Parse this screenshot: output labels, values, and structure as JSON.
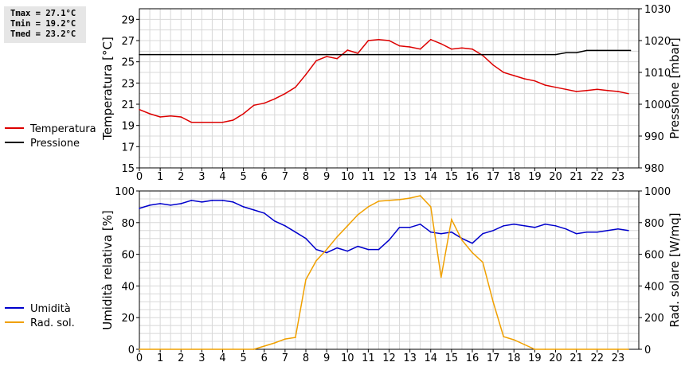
{
  "stats": {
    "tmax": "Tmax = 27.1°C",
    "tmin": "Tmin = 19.2°C",
    "tmed": "Tmed = 23.2°C"
  },
  "chart_data": [
    {
      "type": "line",
      "xlim": [
        0,
        24
      ],
      "x_ticks": [
        "0",
        "1",
        "2",
        "3",
        "4",
        "5",
        "6",
        "7",
        "8",
        "9",
        "10",
        "11",
        "12",
        "13",
        "14",
        "15",
        "16",
        "17",
        "18",
        "19",
        "20",
        "21",
        "22",
        "23"
      ],
      "ylabel": "Temperatura [°C]",
      "ylim": [
        15,
        30
      ],
      "y_ticks": [
        15,
        17,
        19,
        21,
        23,
        25,
        27,
        29
      ],
      "y2label": "Pressione [mbar]",
      "y2lim": [
        980,
        1030
      ],
      "y2_ticks": [
        980,
        990,
        1000,
        1010,
        1020,
        1030
      ],
      "grid": true,
      "legend_position": "left",
      "series": [
        {
          "name": "Temperatura",
          "axis": "left",
          "color": "#dd0000",
          "x": [
            0,
            0.5,
            1,
            1.5,
            2,
            2.5,
            3,
            3.5,
            4,
            4.5,
            5,
            5.5,
            6,
            6.5,
            7,
            7.5,
            8,
            8.5,
            9,
            9.5,
            10,
            10.5,
            11,
            11.5,
            12,
            12.5,
            13,
            13.5,
            14,
            14.5,
            15,
            15.5,
            16,
            16.5,
            17,
            17.5,
            18,
            18.5,
            19,
            19.5,
            20,
            20.5,
            21,
            21.5,
            22,
            22.5,
            23,
            23.5
          ],
          "values": [
            20.5,
            20.1,
            19.8,
            19.9,
            19.8,
            19.3,
            19.3,
            19.3,
            19.3,
            19.5,
            20.1,
            20.9,
            21.1,
            21.5,
            22.0,
            22.6,
            23.8,
            25.1,
            25.5,
            25.3,
            26.1,
            25.8,
            27.0,
            27.1,
            27.0,
            26.5,
            26.4,
            26.2,
            27.1,
            26.7,
            26.2,
            26.3,
            26.2,
            25.6,
            24.7,
            24.0,
            23.7,
            23.4,
            23.2,
            22.8,
            22.6,
            22.4,
            22.2,
            22.3,
            22.4,
            22.3,
            22.2,
            22.0
          ]
        },
        {
          "name": "Pressione",
          "axis": "right",
          "color": "#000000",
          "x": [
            0,
            20,
            20.5,
            21,
            21.5,
            22,
            23.6
          ],
          "values": [
            1015.6,
            1015.6,
            1016.2,
            1016.2,
            1016.9,
            1016.9,
            1016.9
          ]
        }
      ]
    },
    {
      "type": "line",
      "xlim": [
        0,
        24
      ],
      "x_ticks": [
        "0",
        "1",
        "2",
        "3",
        "4",
        "5",
        "6",
        "7",
        "8",
        "9",
        "10",
        "11",
        "12",
        "13",
        "14",
        "15",
        "16",
        "17",
        "18",
        "19",
        "20",
        "21",
        "22",
        "23"
      ],
      "ylabel": "Umidità relativa [%]",
      "ylim": [
        0,
        100
      ],
      "y_ticks": [
        0,
        20,
        40,
        60,
        80,
        100
      ],
      "y2label": "Rad. solare [W/mq]",
      "y2lim": [
        0,
        1000
      ],
      "y2_ticks": [
        0,
        200,
        400,
        600,
        800,
        1000
      ],
      "grid": true,
      "legend_position": "left",
      "series": [
        {
          "name": "Umidità",
          "axis": "left",
          "color": "#0000cc",
          "x": [
            0,
            0.5,
            1,
            1.5,
            2,
            2.5,
            3,
            3.5,
            4,
            4.5,
            5,
            5.5,
            6,
            6.5,
            7,
            7.5,
            8,
            8.5,
            9,
            9.5,
            10,
            10.5,
            11,
            11.5,
            12,
            12.5,
            13,
            13.5,
            14,
            14.5,
            15,
            15.5,
            16,
            16.5,
            17,
            17.5,
            18,
            18.5,
            19,
            19.5,
            20,
            20.5,
            21,
            21.5,
            22,
            22.5,
            23,
            23.5
          ],
          "values": [
            89,
            91,
            92,
            91,
            92,
            94,
            93,
            94,
            94,
            93,
            90,
            88,
            86,
            81,
            78,
            74,
            70,
            63,
            61,
            64,
            62,
            65,
            63,
            63,
            69,
            77,
            77,
            79,
            74,
            73,
            74,
            70,
            67,
            73,
            75,
            78,
            79,
            78,
            77,
            79,
            78,
            76,
            73,
            74,
            74,
            75,
            76,
            75
          ]
        },
        {
          "name": "Rad. sol.",
          "axis": "right",
          "color": "#f0a000",
          "x": [
            0,
            5.5,
            6,
            6.5,
            7,
            7.5,
            8,
            8.5,
            9,
            9.5,
            10,
            10.5,
            11,
            11.5,
            12,
            12.5,
            13,
            13.5,
            14,
            14.5,
            15,
            15.5,
            16,
            16.5,
            17,
            17.5,
            18,
            18.5,
            19,
            19.5,
            20,
            21,
            22,
            23,
            23.5
          ],
          "values": [
            0,
            0,
            20,
            40,
            65,
            75,
            440,
            560,
            630,
            710,
            780,
            850,
            900,
            935,
            940,
            945,
            955,
            970,
            900,
            455,
            820,
            690,
            610,
            550,
            300,
            80,
            60,
            30,
            0,
            0,
            0,
            0,
            0,
            0,
            0
          ]
        }
      ]
    }
  ]
}
